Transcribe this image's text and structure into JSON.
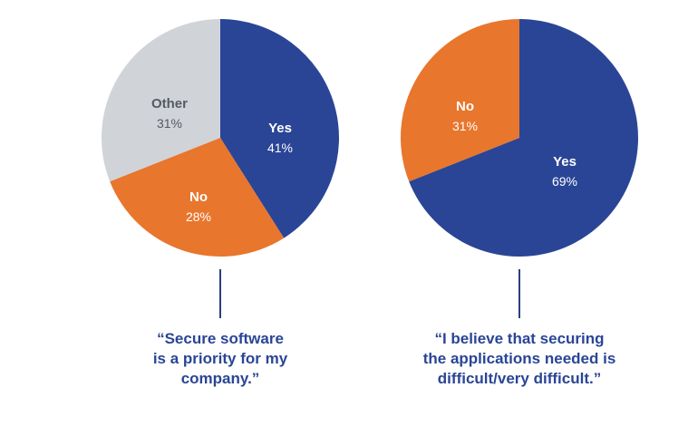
{
  "colors": {
    "yes": "#2a4596",
    "no": "#e8762d",
    "other": "#d0d3d8",
    "caption": "#2a4596",
    "connector": "#2a3f7e",
    "label_dark": "#555a63",
    "label_light": "#ffffff"
  },
  "chart_data": [
    {
      "type": "pie",
      "slices": [
        {
          "label": "Yes",
          "value": 41,
          "value_text": "41%",
          "color": "#2a4596"
        },
        {
          "label": "No",
          "value": 28,
          "value_text": "28%",
          "color": "#e8762d"
        },
        {
          "label": "Other",
          "value": 31,
          "value_text": "31%",
          "color": "#d0d3d8"
        }
      ],
      "caption_lines": [
        "“Secure software",
        "is a priority for my",
        "company.”"
      ]
    },
    {
      "type": "pie",
      "slices": [
        {
          "label": "Yes",
          "value": 69,
          "value_text": "69%",
          "color": "#2a4596"
        },
        {
          "label": "No",
          "value": 31,
          "value_text": "31%",
          "color": "#e8762d"
        }
      ],
      "caption_lines": [
        "“I believe that securing",
        "the applications needed is",
        "difficult/very difficult.”"
      ]
    }
  ]
}
